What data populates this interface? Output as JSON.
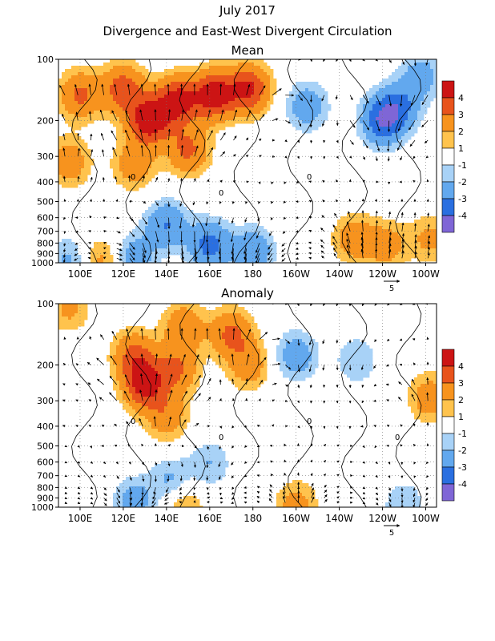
{
  "header": {
    "title": "July 2017",
    "subtitle": "Divergence and East-West Divergent Circulation"
  },
  "colors": {
    "pos": [
      "#ffffff",
      "#ffc34d",
      "#f7931e",
      "#e8531c",
      "#cc1414"
    ],
    "neg": [
      "#ffffff",
      "#a8d2f7",
      "#62a8ee",
      "#2a6fe0",
      "#7f66d6"
    ]
  },
  "chart_data": [
    {
      "type": "heatmap",
      "title": "Mean",
      "x_ticks": [
        "100E",
        "120E",
        "140E",
        "160E",
        "180",
        "160W",
        "140W",
        "120W",
        "100W"
      ],
      "x_range_lon": [
        90,
        265
      ],
      "y_ticks": [
        "100",
        "200",
        "300",
        "400",
        "500",
        "600",
        "700",
        "800",
        "900",
        "1000"
      ],
      "y_range_hpa": [
        100,
        1000
      ],
      "y_scale": "log",
      "colorbar": {
        "labels": [
          "4",
          "3",
          "2",
          "1",
          "-1",
          "-2",
          "-3",
          "-4"
        ],
        "levels": [
          4,
          3,
          2,
          1,
          0,
          -1,
          -2,
          -3,
          -4
        ]
      },
      "vector_ref": "5",
      "contour_labels": [
        "0",
        "0",
        "0"
      ],
      "blobs": [
        {
          "lon": 100,
          "p": 150,
          "v": 2.2
        },
        {
          "lon": 120,
          "p": 140,
          "v": 2.6
        },
        {
          "lon": 132,
          "p": 200,
          "v": 3.8
        },
        {
          "lon": 145,
          "p": 160,
          "v": 3.4
        },
        {
          "lon": 162,
          "p": 150,
          "v": 3.6
        },
        {
          "lon": 178,
          "p": 140,
          "v": 3.2
        },
        {
          "lon": 150,
          "p": 280,
          "v": 2.2
        },
        {
          "lon": 125,
          "p": 330,
          "v": 1.6
        },
        {
          "lon": 95,
          "p": 320,
          "v": 1.6
        },
        {
          "lon": 205,
          "p": 170,
          "v": -1.6
        },
        {
          "lon": 240,
          "p": 200,
          "v": -2.8
        },
        {
          "lon": 248,
          "p": 170,
          "v": -1.8
        },
        {
          "lon": 258,
          "p": 120,
          "v": -1.4
        },
        {
          "lon": 140,
          "p": 650,
          "v": -2.0
        },
        {
          "lon": 160,
          "p": 820,
          "v": -2.4
        },
        {
          "lon": 180,
          "p": 880,
          "v": -1.8
        },
        {
          "lon": 125,
          "p": 950,
          "v": -1.6
        },
        {
          "lon": 95,
          "p": 980,
          "v": -1.2
        },
        {
          "lon": 227,
          "p": 760,
          "v": 1.6
        },
        {
          "lon": 242,
          "p": 820,
          "v": 1.4
        },
        {
          "lon": 262,
          "p": 760,
          "v": 1.2
        },
        {
          "lon": 110,
          "p": 980,
          "v": 1.3
        }
      ]
    },
    {
      "type": "heatmap",
      "title": "Anomaly",
      "x_ticks": [
        "100E",
        "120E",
        "140E",
        "160E",
        "180",
        "160W",
        "140W",
        "120W",
        "100W"
      ],
      "x_range_lon": [
        90,
        265
      ],
      "y_ticks": [
        "100",
        "200",
        "300",
        "400",
        "500",
        "600",
        "700",
        "800",
        "900",
        "1000"
      ],
      "y_range_hpa": [
        100,
        1000
      ],
      "y_scale": "log",
      "colorbar": {
        "labels": [
          "4",
          "3",
          "2",
          "1",
          "-1",
          "-2",
          "-3",
          "-4"
        ],
        "levels": [
          4,
          3,
          2,
          1,
          0,
          -1,
          -2,
          -3,
          -4
        ]
      },
      "vector_ref": "5",
      "contour_labels": [
        "0",
        "0",
        "0",
        "0"
      ],
      "blobs": [
        {
          "lon": 130,
          "p": 250,
          "v": 3.4
        },
        {
          "lon": 125,
          "p": 180,
          "v": 2.2
        },
        {
          "lon": 145,
          "p": 210,
          "v": 2.0
        },
        {
          "lon": 148,
          "p": 130,
          "v": 1.8
        },
        {
          "lon": 170,
          "p": 140,
          "v": 2.2
        },
        {
          "lon": 178,
          "p": 200,
          "v": 1.6
        },
        {
          "lon": 140,
          "p": 360,
          "v": 1.6
        },
        {
          "lon": 95,
          "p": 105,
          "v": 1.2
        },
        {
          "lon": 200,
          "p": 180,
          "v": -1.6
        },
        {
          "lon": 228,
          "p": 190,
          "v": -1.0
        },
        {
          "lon": 142,
          "p": 740,
          "v": -1.2
        },
        {
          "lon": 125,
          "p": 940,
          "v": -1.4
        },
        {
          "lon": 200,
          "p": 980,
          "v": 1.4
        },
        {
          "lon": 148,
          "p": 990,
          "v": 1.2
        },
        {
          "lon": 160,
          "p": 610,
          "v": -1.0
        },
        {
          "lon": 262,
          "p": 290,
          "v": 1.6
        },
        {
          "lon": 250,
          "p": 980,
          "v": -1.0
        }
      ]
    }
  ]
}
